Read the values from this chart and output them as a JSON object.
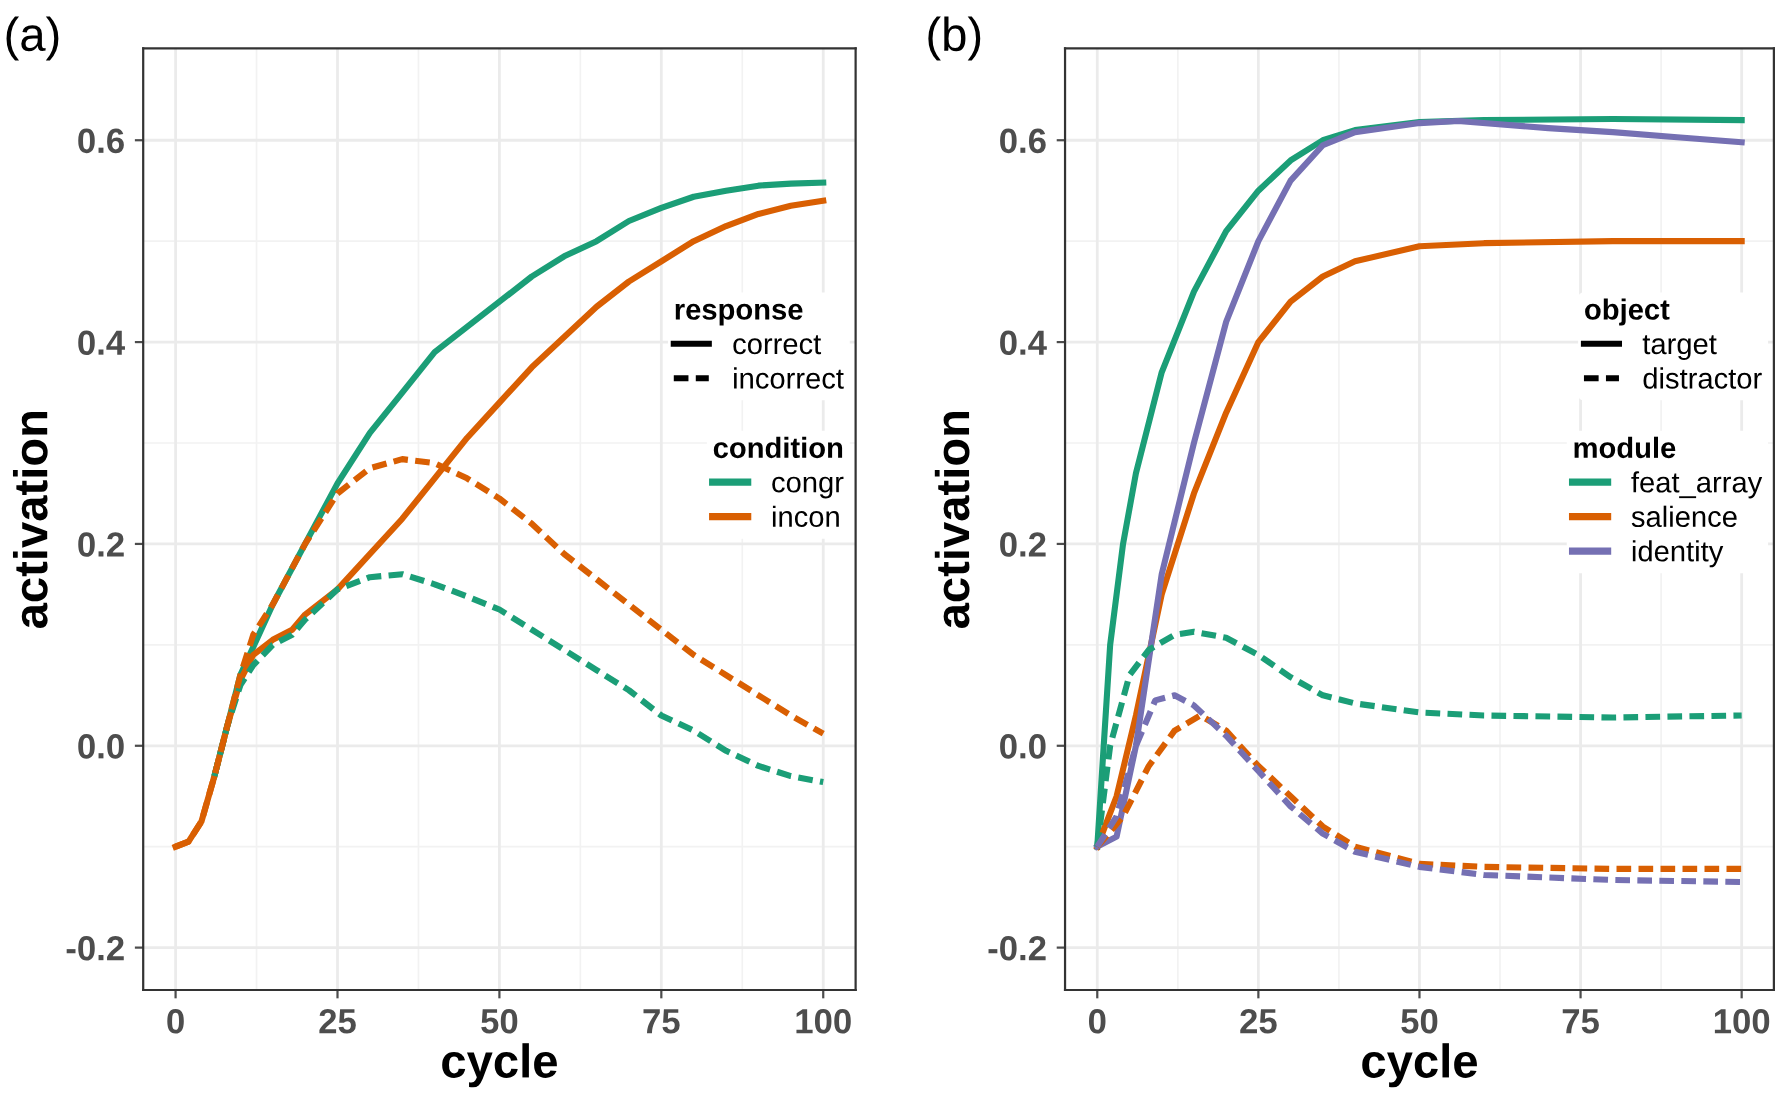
{
  "chart_data": [
    {
      "type": "line",
      "title": "(a)",
      "xlabel": "cycle",
      "ylabel": "activation",
      "xlim": [
        -5,
        105
      ],
      "ylim": [
        -0.242,
        0.691
      ],
      "xticks": [
        0,
        25,
        50,
        75,
        100
      ],
      "yticks": [
        -0.2,
        {
          "value": 0,
          "label": "0.0"
        },
        0.2,
        0.4,
        0.6
      ],
      "grid": true,
      "legend": "right",
      "legend_title": "condition",
      "annotations": [
        "response",
        "correct",
        "incorrect"
      ],
      "series": [
        {
          "name": "congr",
          "color": "#1b9e77",
          "line_style": "solid",
          "x": [
            6,
            8,
            10,
            15,
            20,
            25,
            30,
            35,
            40,
            45,
            50,
            55,
            60,
            65,
            70,
            75,
            80,
            85,
            90,
            95,
            100
          ],
          "values": [
            -0.03,
            0.02,
            0.07,
            0.14,
            0.2,
            0.26,
            0.31,
            0.35,
            0.39,
            0.415,
            0.44,
            0.465,
            0.485,
            0.5,
            0.52,
            0.533,
            0.544,
            0.55,
            0.555,
            0.557,
            0.558
          ]
        },
        {
          "name": "incon",
          "color": "#d95f02",
          "line_style": "solid",
          "x": [
            0,
            2,
            4,
            6,
            8,
            10,
            12,
            15,
            18,
            20,
            25,
            30,
            35,
            40,
            45,
            50,
            55,
            60,
            65,
            70,
            75,
            80,
            85,
            90,
            95,
            100
          ],
          "values": [
            -0.1,
            -0.095,
            -0.075,
            -0.03,
            0.02,
            0.065,
            0.09,
            0.105,
            0.115,
            0.13,
            0.155,
            0.19,
            0.225,
            0.265,
            0.305,
            0.34,
            0.375,
            0.405,
            0.435,
            0.46,
            0.48,
            0.5,
            0.515,
            0.527,
            0.535,
            0.54
          ]
        },
        {
          "color": "#1b9e77",
          "line_style": "dashed",
          "x": [
            6,
            8,
            10,
            12,
            15,
            18,
            20,
            25,
            30,
            35,
            40,
            45,
            50,
            55,
            60,
            65,
            70,
            75,
            80,
            85,
            90,
            95,
            100
          ],
          "values": [
            -0.03,
            0.02,
            0.06,
            0.08,
            0.1,
            0.11,
            0.125,
            0.155,
            0.167,
            0.17,
            0.16,
            0.148,
            0.135,
            0.115,
            0.095,
            0.075,
            0.055,
            0.03,
            0.015,
            -0.005,
            -0.02,
            -0.03,
            -0.036
          ]
        },
        {
          "color": "#d95f02",
          "line_style": "dashed",
          "x": [
            0,
            2,
            4,
            6,
            8,
            10,
            12,
            15,
            20,
            25,
            30,
            35,
            40,
            45,
            50,
            55,
            60,
            65,
            70,
            75,
            80,
            85,
            90,
            95,
            100
          ],
          "values": [
            -0.1,
            -0.095,
            -0.075,
            -0.03,
            0.02,
            0.07,
            0.11,
            0.14,
            0.2,
            0.25,
            0.275,
            0.284,
            0.28,
            0.265,
            0.245,
            0.22,
            0.19,
            0.165,
            0.14,
            0.115,
            0.09,
            0.07,
            0.05,
            0.03,
            0.012
          ]
        }
      ]
    },
    {
      "type": "line",
      "title": "(b)",
      "xlabel": "cycle",
      "ylabel": "activation",
      "xlim": [
        -5,
        105
      ],
      "ylim": [
        -0.242,
        0.691
      ],
      "xticks": [
        0,
        25,
        50,
        75,
        100
      ],
      "yticks": [
        -0.2,
        {
          "value": 0,
          "label": "0.0"
        },
        0.2,
        0.4,
        0.6
      ],
      "grid": true,
      "legend": "right",
      "legend_title": "module",
      "annotations": [
        "object",
        "target",
        "distractor"
      ],
      "series": [
        {
          "name": "feat_array",
          "color": "#1b9e77",
          "line_style": "solid",
          "x": [
            0,
            1,
            2,
            4,
            6,
            10,
            15,
            20,
            25,
            30,
            35,
            40,
            50,
            60,
            80,
            100
          ],
          "values": [
            -0.1,
            0.0,
            0.1,
            0.2,
            0.27,
            0.37,
            0.45,
            0.51,
            0.55,
            0.58,
            0.6,
            0.61,
            0.618,
            0.62,
            0.621,
            0.62
          ]
        },
        {
          "name": "salience",
          "color": "#d95f02",
          "line_style": "solid",
          "x": [
            0,
            3,
            6,
            10,
            15,
            20,
            25,
            30,
            35,
            40,
            50,
            60,
            80,
            100
          ],
          "values": [
            -0.1,
            -0.05,
            0.03,
            0.15,
            0.25,
            0.33,
            0.4,
            0.44,
            0.465,
            0.48,
            0.495,
            0.498,
            0.5,
            0.5
          ]
        },
        {
          "name": "identity",
          "color": "#7570b3",
          "line_style": "solid",
          "x": [
            0,
            3,
            6,
            10,
            15,
            20,
            25,
            30,
            35,
            40,
            50,
            56,
            70,
            80,
            90,
            100
          ],
          "values": [
            -0.1,
            -0.09,
            0.0,
            0.17,
            0.3,
            0.42,
            0.5,
            0.56,
            0.595,
            0.608,
            0.617,
            0.619,
            0.612,
            0.608,
            0.603,
            0.598
          ]
        },
        {
          "color": "#1b9e77",
          "line_style": "dashed",
          "x": [
            0,
            2,
            5,
            8,
            12,
            15,
            20,
            25,
            30,
            35,
            40,
            50,
            60,
            80,
            100
          ],
          "values": [
            -0.1,
            0.0,
            0.07,
            0.095,
            0.11,
            0.113,
            0.107,
            0.09,
            0.068,
            0.05,
            0.042,
            0.033,
            0.03,
            0.028,
            0.03
          ]
        },
        {
          "color": "#d95f02",
          "line_style": "dashed",
          "x": [
            0,
            4,
            8,
            12,
            16,
            20,
            25,
            30,
            35,
            40,
            50,
            60,
            80,
            100
          ],
          "values": [
            -0.1,
            -0.07,
            -0.02,
            0.015,
            0.03,
            0.015,
            -0.02,
            -0.05,
            -0.08,
            -0.1,
            -0.117,
            -0.12,
            -0.122,
            -0.122
          ]
        },
        {
          "color": "#7570b3",
          "line_style": "dashed",
          "x": [
            0,
            3,
            6,
            9,
            12,
            15,
            20,
            25,
            30,
            35,
            40,
            50,
            60,
            80,
            100
          ],
          "values": [
            -0.1,
            -0.07,
            0.0,
            0.045,
            0.05,
            0.04,
            0.01,
            -0.025,
            -0.06,
            -0.087,
            -0.105,
            -0.12,
            -0.128,
            -0.133,
            -0.135
          ]
        }
      ]
    }
  ]
}
